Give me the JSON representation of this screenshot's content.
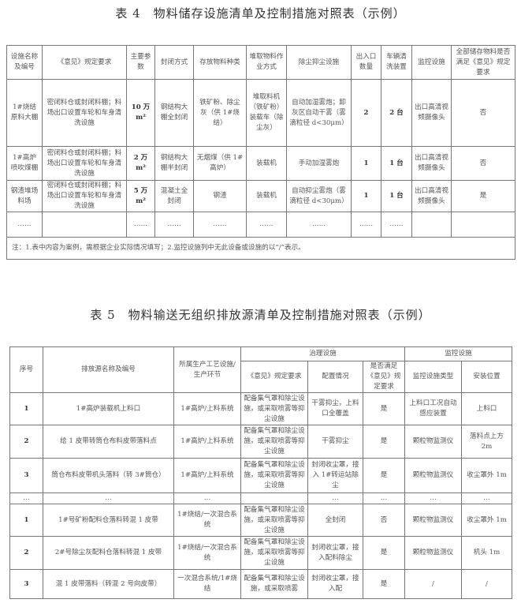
{
  "table4": {
    "title": "表 4　物料储存设施清单及控制措施对照表（示例）",
    "headers": [
      "设施名称及编号",
      "《意见》规定要求",
      "主要参数",
      "封闭方式",
      "存放物料种类",
      "堆取物料作业方式",
      "除尘抑尘设施",
      "出入口数量",
      "车辆清洗装置",
      "监控设施",
      "全部储存物料是否满足《意见》规定要求"
    ],
    "rows": [
      [
        "1#烧结原料大棚",
        "密闭料仓或封闭料棚；料场出口设置车轮和车身清洗设施",
        "10 万 m²",
        "钢结构大棚全封闭",
        "铁矿粉、除尘灰（供 1#烧结）",
        "堆取料机（铁矿粉）装载车（除尘灰）",
        "自动加湿雾炮；卸灰区自动干雾（雾滴粒径 d<30μm）",
        "2",
        "2 台",
        "出口高清视频摄像头",
        "否"
      ],
      [
        "1#高炉喷吹煤棚",
        "密闭料仓或封闭料棚；料场出口设置车轮和车身清洗设施",
        "2 万 m²",
        "钢结构大棚半封闭",
        "无烟煤（供 1#高炉）",
        "装载机",
        "手动加湿雾炮",
        "1",
        "1 台",
        "出口高清视频摄像头",
        "否"
      ],
      [
        "钢渣堆场料场",
        "密闭料仓或封闭料棚；料场出口设置车轮和车身清洗设施",
        "5 万 m²",
        "混凝土全封闭",
        "钢渣",
        "装载机",
        "自动抑尘雾炮（雾滴粒径 d<30μm）",
        "1",
        "1 台",
        "出口高清视频摄像头",
        "是"
      ],
      [
        "……",
        "",
        "……",
        "……",
        "……",
        "……",
        "……",
        "……",
        "……",
        "",
        ""
      ]
    ],
    "note": "注：1.表中内容为案例，需根据企业实际情况填写；2.监控设施列中无此设备或设施的以“/”表示。"
  },
  "table5": {
    "title": "表 5　物料输送无组织排放源清单及控制措施对照表（示例）",
    "group_headers": {
      "treatment": "治理设施",
      "monitoring": "监控设施"
    },
    "headers": [
      "序号",
      "排放源名称及编号",
      "所属生产工艺设施/生产环节",
      "《意见》规定要求",
      "配置情况",
      "是否满足《意见》规定要求",
      "监控设施类型",
      "安装位置"
    ],
    "rows": [
      [
        "1",
        "1#高炉装载机上料口",
        "1#高炉/上料系统",
        "配备集气罩和除尘设施，或采取喷雾等抑尘设施",
        "干雾抑尘，上料口全覆盖",
        "是",
        "上料口工况自动感应装置",
        "上料口"
      ],
      [
        "2",
        "给 1 皮带转筒仓布料皮带落料点",
        "1#高炉/上料系统",
        "配备集气罩和除尘设施，或采取喷雾等抑尘设施",
        "干雾抑尘",
        "是",
        "颗粒物监测仪",
        "落料点上方 2m"
      ],
      [
        "3",
        "筒仓布料皮带机头落料（转 3#筒仓）",
        "1#高炉/上料系统",
        "配备集气罩和除尘设施，或采取喷雾等抑尘设施",
        "封闭收尘罩，接入 1#转运站除尘",
        "是",
        "颗粒物监测仪",
        "收尘罩外 1m"
      ],
      [
        "…",
        "…",
        "…",
        "",
        "…",
        "…",
        "…",
        "…"
      ],
      [
        "1",
        "1#号矿粉配料仓落料转混 1 皮带",
        "1#烧结/一次混合系统",
        "配备集气罩和除尘设施，或采取喷雾等抑尘设施",
        "全封闭",
        "否",
        "颗粒物监测仪",
        "收尘罩外 1m"
      ],
      [
        "2",
        "2#号除尘灰配料仓落料转混 1 皮带",
        "1#烧结/一次混合系统",
        "配备集气罩和除尘设施，或采取喷雾等抑尘设施",
        "封闭收尘罩，接入配料除尘",
        "是",
        "颗粒物监测仪",
        "机头 1m"
      ],
      [
        "3",
        "混 1 皮带落料（转混 2 号向皮带）",
        "一次混合系统/1#烧结",
        "配备集气罩和除尘设施，或采取喷雾",
        "封闭收尘罩，接入配",
        "是",
        "/",
        "/"
      ]
    ]
  }
}
